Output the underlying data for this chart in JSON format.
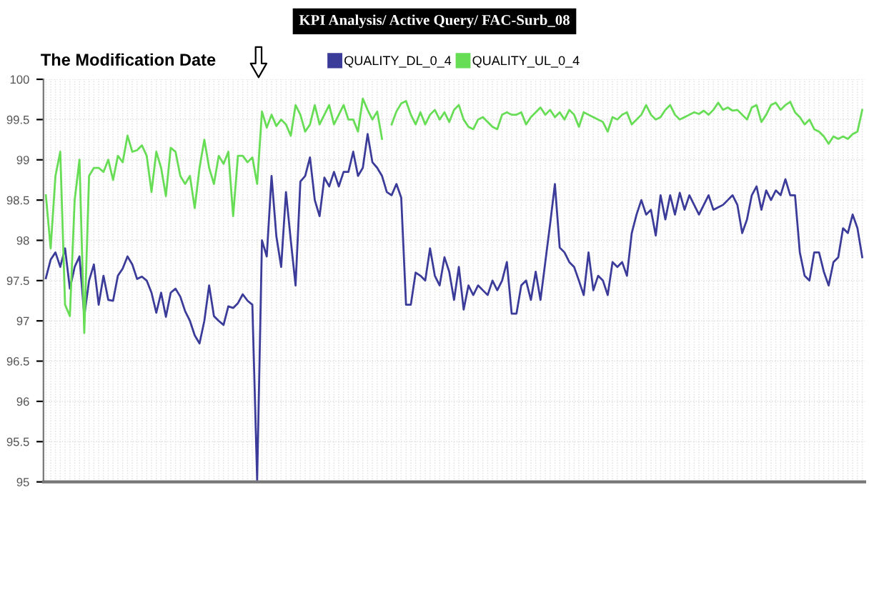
{
  "chart_data": {
    "type": "line",
    "title": "KPI Analysis/ Active Query/ FAC-Surb_08",
    "annotations": [
      "The Modification Date"
    ],
    "categories": [
      null,
      null,
      null,
      null,
      null,
      null,
      null,
      null,
      null,
      null,
      null,
      null,
      null,
      null,
      null,
      null,
      null,
      null,
      null,
      null,
      null,
      null,
      null,
      null,
      null,
      null,
      null,
      null,
      null,
      null,
      null,
      null,
      null,
      null,
      null,
      null,
      null,
      null,
      null,
      null,
      null,
      null,
      null,
      null,
      null,
      null,
      null,
      null,
      null,
      null,
      null,
      null,
      null,
      null,
      null,
      null,
      null,
      null,
      null,
      null,
      null,
      null,
      null,
      null,
      null,
      null,
      null,
      null,
      null,
      null,
      null,
      null,
      null,
      null,
      null,
      null,
      null,
      null,
      null,
      null,
      null,
      null,
      null,
      null,
      null,
      null,
      null,
      null,
      null,
      null,
      null,
      null,
      null,
      null,
      null,
      null,
      null,
      null,
      null,
      null,
      null,
      null,
      null,
      null,
      null,
      null,
      null,
      null,
      null,
      null,
      null,
      null,
      null,
      null,
      null,
      null,
      null,
      null,
      null,
      null,
      null,
      null,
      null,
      null,
      null,
      null,
      null,
      null,
      null,
      null,
      null,
      null,
      null,
      null,
      null,
      null,
      null,
      null,
      null,
      null,
      null,
      null,
      null,
      null,
      null,
      null,
      null,
      null,
      null,
      null,
      null,
      null,
      null,
      null,
      null,
      null,
      null,
      null,
      null,
      null,
      null,
      null,
      null,
      null,
      null,
      null,
      null,
      null,
      null,
      null,
      null
    ],
    "series": [
      {
        "name": "QUALITY_DL_0_4",
        "color": "#3b3b9a",
        "values": [
          97.53,
          97.76,
          97.85,
          97.67,
          97.9,
          97.4,
          97.67,
          97.8,
          97.06,
          97.5,
          97.7,
          97.2,
          97.56,
          97.26,
          97.25,
          97.56,
          97.65,
          97.8,
          97.7,
          97.52,
          97.55,
          97.5,
          97.35,
          97.1,
          97.35,
          97.05,
          97.35,
          97.4,
          97.3,
          97.12,
          97.0,
          96.82,
          96.72,
          97.0,
          97.44,
          97.06,
          97.0,
          96.95,
          97.18,
          97.16,
          97.22,
          97.33,
          97.25,
          97.2,
          95.02,
          98.0,
          97.8,
          98.8,
          98.05,
          97.67,
          98.6,
          98.0,
          97.44,
          98.73,
          98.8,
          99.03,
          98.5,
          98.3,
          98.78,
          98.67,
          98.85,
          98.67,
          98.85,
          98.85,
          99.1,
          98.8,
          98.9,
          99.32,
          98.97,
          98.9,
          98.8,
          98.6,
          98.56,
          98.7,
          98.53,
          97.2,
          97.2,
          97.6,
          97.56,
          97.5,
          97.9,
          97.56,
          97.44,
          97.79,
          97.61,
          97.26,
          97.67,
          97.14,
          97.44,
          97.32,
          97.44,
          97.38,
          97.32,
          97.5,
          97.38,
          97.5,
          97.73,
          97.09,
          97.09,
          97.44,
          97.5,
          97.26,
          97.61,
          97.26,
          97.73,
          98.2,
          98.7,
          97.91,
          97.85,
          97.73,
          97.67,
          97.5,
          97.32,
          97.85,
          97.38,
          97.56,
          97.5,
          97.32,
          97.73,
          97.67,
          97.73,
          97.56,
          98.09,
          98.32,
          98.5,
          98.32,
          98.38,
          98.06,
          98.56,
          98.26,
          98.56,
          98.32,
          98.59,
          98.38,
          98.56,
          98.44,
          98.32,
          98.44,
          98.56,
          98.38,
          98.41,
          98.44,
          98.5,
          98.56,
          98.44,
          98.09,
          98.26,
          98.56,
          98.67,
          98.38,
          98.62,
          98.5,
          98.62,
          98.56,
          98.76,
          98.56,
          98.56,
          97.85,
          97.56,
          97.5,
          97.85,
          97.85,
          97.61,
          97.44,
          97.73,
          97.79,
          98.15,
          98.09,
          98.32,
          98.15,
          97.79
        ]
      },
      {
        "name": "QUALITY_UL_0_4",
        "color": "#66dd55",
        "values": [
          98.56,
          97.9,
          98.8,
          99.1,
          97.2,
          97.06,
          98.5,
          99.0,
          96.85,
          98.8,
          98.9,
          98.9,
          98.85,
          99.0,
          98.75,
          99.05,
          98.97,
          99.3,
          99.1,
          99.12,
          99.18,
          99.05,
          98.6,
          99.1,
          98.9,
          98.55,
          99.15,
          99.1,
          98.8,
          98.7,
          98.8,
          98.4,
          98.9,
          99.25,
          98.9,
          98.7,
          99.05,
          98.95,
          99.1,
          98.3,
          99.05,
          99.05,
          98.97,
          99.03,
          98.7,
          99.6,
          99.4,
          99.56,
          99.42,
          99.5,
          99.44,
          99.3,
          99.68,
          99.56,
          99.35,
          99.44,
          99.68,
          99.44,
          99.56,
          99.68,
          99.44,
          99.56,
          99.68,
          99.5,
          99.5,
          99.35,
          99.76,
          99.62,
          99.5,
          99.6,
          99.26,
          null,
          99.44,
          99.6,
          99.7,
          99.73,
          99.56,
          99.44,
          99.59,
          99.44,
          99.56,
          99.62,
          99.5,
          99.59,
          99.47,
          99.62,
          99.68,
          99.5,
          99.41,
          99.38,
          99.5,
          99.53,
          99.47,
          99.41,
          99.38,
          99.56,
          99.59,
          99.56,
          99.56,
          99.59,
          99.44,
          99.53,
          99.59,
          99.65,
          99.56,
          99.62,
          99.53,
          99.59,
          99.5,
          99.62,
          99.56,
          99.41,
          99.59,
          99.56,
          99.53,
          99.5,
          99.47,
          99.35,
          99.53,
          99.5,
          99.56,
          99.59,
          99.44,
          99.5,
          99.56,
          99.68,
          99.56,
          99.5,
          99.53,
          99.62,
          99.68,
          99.56,
          99.5,
          99.53,
          99.56,
          99.59,
          99.57,
          99.61,
          99.56,
          99.62,
          99.71,
          99.62,
          99.65,
          99.61,
          99.62,
          99.56,
          99.5,
          99.65,
          99.68,
          99.47,
          99.56,
          99.68,
          99.71,
          99.62,
          99.68,
          99.72,
          99.59,
          99.53,
          99.44,
          99.5,
          99.38,
          99.35,
          99.29,
          99.2,
          99.29,
          99.26,
          99.29,
          99.26,
          99.32,
          99.35,
          99.62
        ]
      }
    ],
    "ylim": [
      95,
      100
    ],
    "yticks": [
      95,
      95.5,
      96,
      96.5,
      97,
      97.5,
      98,
      98.5,
      99,
      99.5,
      100
    ],
    "grid": true,
    "legend": "top",
    "marker": "none",
    "line_style": "solid"
  }
}
